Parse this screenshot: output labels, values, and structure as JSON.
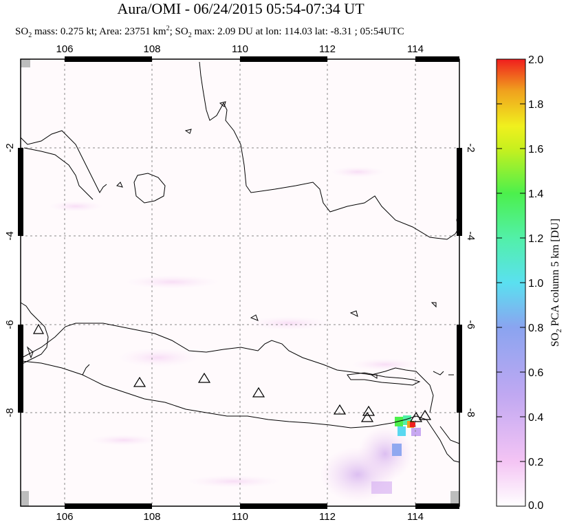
{
  "title": "Aura/OMI - 06/24/2015 05:54-07:34 UT",
  "subtitle": {
    "so2_prefix": "SO",
    "so2_sub": "2",
    "mass_text": " mass: 0.275 kt; Area: 23751 km",
    "area_sup": "2",
    "max_prefix": "; SO",
    "max_sub": "2",
    "max_text": " max: 2.09 DU at lon: 114.03 lat: -8.31 ; 05:54UTC"
  },
  "map": {
    "lon_ticks": [
      "106",
      "108",
      "110",
      "112",
      "114"
    ],
    "lat_ticks": [
      "-2",
      "-4",
      "-6",
      "-8"
    ],
    "lon_range": [
      105,
      115
    ],
    "lat_range": [
      -10.2,
      -0.1
    ],
    "volcano_marker": "triangle-icon"
  },
  "colorbar": {
    "labels": [
      "2.0",
      "1.8",
      "1.6",
      "1.4",
      "1.2",
      "1.0",
      "0.8",
      "0.6",
      "0.4",
      "0.2",
      "0.0"
    ],
    "title_prefix": "SO",
    "title_sub": "2",
    "title_text": " PCA column 5 km [DU]",
    "colors": [
      "#ffffff",
      "#f4c4f4",
      "#c9a8f2",
      "#8fa0f0",
      "#5ad8f0",
      "#6af0c8",
      "#4cf04c",
      "#b4f01e",
      "#f0f01e",
      "#f0a01e",
      "#f01e1e"
    ]
  }
}
